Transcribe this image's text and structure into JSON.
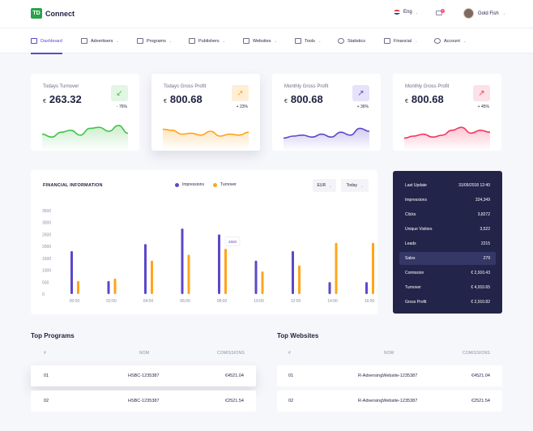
{
  "header": {
    "logo_mark": "TD",
    "logo_text": "Connect",
    "language": "Eng",
    "notification_count": "3",
    "user_name": "Gold Fish"
  },
  "nav": [
    {
      "label": "Dashboard",
      "icon": "grid-icon",
      "active": true
    },
    {
      "label": "Advertisers",
      "icon": "megaphone-icon",
      "dropdown": true
    },
    {
      "label": "Programs",
      "icon": "layers-icon",
      "dropdown": true
    },
    {
      "label": "Publishers",
      "icon": "printer-icon",
      "dropdown": true
    },
    {
      "label": "Websites",
      "icon": "www-icon",
      "dropdown": true
    },
    {
      "label": "Tools",
      "icon": "tools-icon",
      "dropdown": true
    },
    {
      "label": "Statistics",
      "icon": "pie-icon"
    },
    {
      "label": "Financial",
      "icon": "money-icon",
      "dropdown": true
    },
    {
      "label": "Account",
      "icon": "user-icon",
      "dropdown": true
    }
  ],
  "kpis": [
    {
      "title": "Todays Turnover",
      "currency": "€",
      "value": "263.32",
      "delta": "- 76%",
      "arrow": "↙",
      "color": "#43c24b",
      "icon_bg": "#e3f5e3",
      "trend": [
        0.35,
        0.2,
        0.45,
        0.55,
        0.3,
        0.65,
        0.7,
        0.5,
        0.8,
        0.4
      ],
      "elevated": false
    },
    {
      "title": "Todays Gross Profit",
      "currency": "€",
      "value": "800.68",
      "delta": "+ 23%",
      "arrow": "↗",
      "color": "#ffa41b",
      "icon_bg": "#ffeed6",
      "trend": [
        0.6,
        0.55,
        0.35,
        0.4,
        0.3,
        0.5,
        0.25,
        0.35,
        0.3,
        0.45
      ],
      "elevated": true
    },
    {
      "title": "Monthly Gross Profit",
      "currency": "€",
      "value": "800.68",
      "delta": "+ 36%",
      "arrow": "↗",
      "color": "#5b48c9",
      "icon_bg": "#e6e2fa",
      "trend": [
        0.15,
        0.25,
        0.3,
        0.2,
        0.35,
        0.2,
        0.45,
        0.3,
        0.65,
        0.5
      ],
      "elevated": false
    },
    {
      "title": "Monthly Gross Profit",
      "currency": "€",
      "value": "800.68",
      "delta": "+ 45%",
      "arrow": "↗",
      "color": "#f5345f",
      "icon_bg": "#fde1e8",
      "trend": [
        0.15,
        0.25,
        0.35,
        0.2,
        0.3,
        0.55,
        0.7,
        0.4,
        0.55,
        0.45
      ],
      "elevated": false
    }
  ],
  "financial": {
    "title": "FINANCIAL INFORMATION",
    "legend_impressions": "Impressions",
    "legend_turnover": "Turnover",
    "currency_select": "EUR",
    "period_select": "Today",
    "tooltip": "2500"
  },
  "chart_data": {
    "type": "bar",
    "categories": [
      "00:00",
      "02:00",
      "04:00",
      "06:00",
      "08:00",
      "10:00",
      "12:00",
      "14:00",
      "16:00"
    ],
    "series": [
      {
        "name": "Impressions",
        "color": "#5b48c9",
        "values": [
          1800,
          550,
          2100,
          2750,
          2500,
          1400,
          1800,
          500,
          500
        ]
      },
      {
        "name": "Turnover",
        "color": "#ffa41b",
        "values": [
          550,
          650,
          1400,
          1650,
          1900,
          950,
          1200,
          2150,
          2150
        ]
      }
    ],
    "yticks": [
      "0",
      "500",
      "1000",
      "1500",
      "2000",
      "2500",
      "3000",
      "3500"
    ],
    "ylim": [
      0,
      3500
    ]
  },
  "stats": [
    {
      "label": "Last Update",
      "value": "31/09/2018  12:40"
    },
    {
      "label": "Impressions",
      "value": "324,349"
    },
    {
      "label": "Clicks",
      "value": "3,8272"
    },
    {
      "label": "Unique Visitors",
      "value": "3,522"
    },
    {
      "label": "Leads",
      "value": "2215"
    },
    {
      "label": "Sales",
      "value": "279",
      "highlight": true
    },
    {
      "label": "Comission",
      "value": "€ 2,910.43"
    },
    {
      "label": "Turnover",
      "value": "€ 4,910.65"
    },
    {
      "label": "Gross Profit",
      "value": "€ 2,910.82"
    }
  ],
  "top_programs": {
    "title": "Top Programs",
    "headers": [
      "#",
      "NOM",
      "COMISSIONS"
    ],
    "rows": [
      {
        "num": "01",
        "name": "HSBC-1235387",
        "value": "€4521.04"
      },
      {
        "num": "02",
        "name": "HSBC-1235387",
        "value": "€2521.54"
      }
    ]
  },
  "top_websites": {
    "title": "Top Websites",
    "headers": [
      "#",
      "NOM",
      "COMISSIONS"
    ],
    "rows": [
      {
        "num": "01",
        "name": "R-AdversingWebsite-1235387",
        "value": "€4521.04"
      },
      {
        "num": "02",
        "name": "R-AdversingWebsite-1235387",
        "value": "€2521.54"
      }
    ]
  }
}
